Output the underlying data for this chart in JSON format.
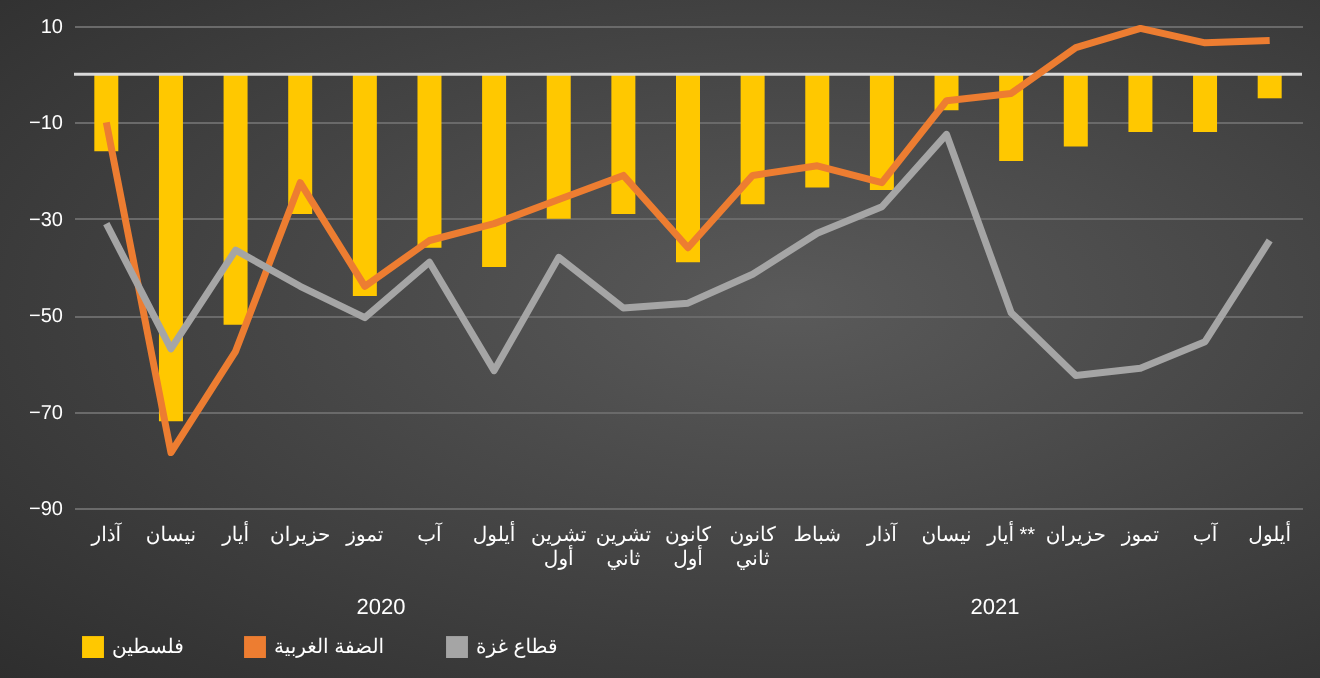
{
  "chart_data": {
    "type": "bar",
    "categories": [
      "آذار",
      "نيسان",
      "أيار",
      "حزيران",
      "تموز",
      "آب",
      "أيلول",
      "تشرين أول",
      "تشرين ثاني",
      "كانون أول",
      "كانون ثاني",
      "شباط",
      "آذار",
      "نيسان",
      "أيار **",
      "حزيران",
      "تموز",
      "آب",
      "أيلول"
    ],
    "series": [
      {
        "name": "فلسطين",
        "color": "#ffc800",
        "values": [
          -16,
          -72,
          -52,
          -29,
          -46,
          -36,
          -40,
          -30,
          -29,
          -39,
          -27,
          -23.5,
          -24,
          -7.5,
          -18,
          -15,
          -12,
          -12,
          -5
        ]
      },
      {
        "name": "الضفة الغربية",
        "type": "line",
        "color": "#ed7d31",
        "values": [
          -10,
          -78.5,
          -57.5,
          -22.5,
          -44,
          -34.5,
          -31,
          -26,
          -21,
          -36,
          -21,
          -19,
          -22.5,
          -5.5,
          -4,
          5.5,
          9.5,
          6.5,
          7
        ]
      },
      {
        "name": "قطاع غزة",
        "type": "line",
        "color": "#a5a5a5",
        "values": [
          -31,
          -57,
          -36.5,
          -44,
          -50.5,
          -39,
          -61.5,
          -38,
          -48.5,
          -47.5,
          -41.5,
          -33,
          -27.5,
          -12.5,
          -49.5,
          -62.5,
          -61,
          -55.5,
          -34.5
        ]
      }
    ],
    "ylim": [
      -90,
      10
    ],
    "yticks": [
      10,
      -10,
      -30,
      -50,
      -70,
      -90
    ],
    "grid": "y",
    "legend": "bottom",
    "line_style": "solid",
    "marker": "none",
    "ref_lines": [
      {
        "axis": "y",
        "value": 0,
        "color": "#d9d9d9"
      }
    ],
    "annotations": [
      "2020",
      "2021"
    ]
  }
}
